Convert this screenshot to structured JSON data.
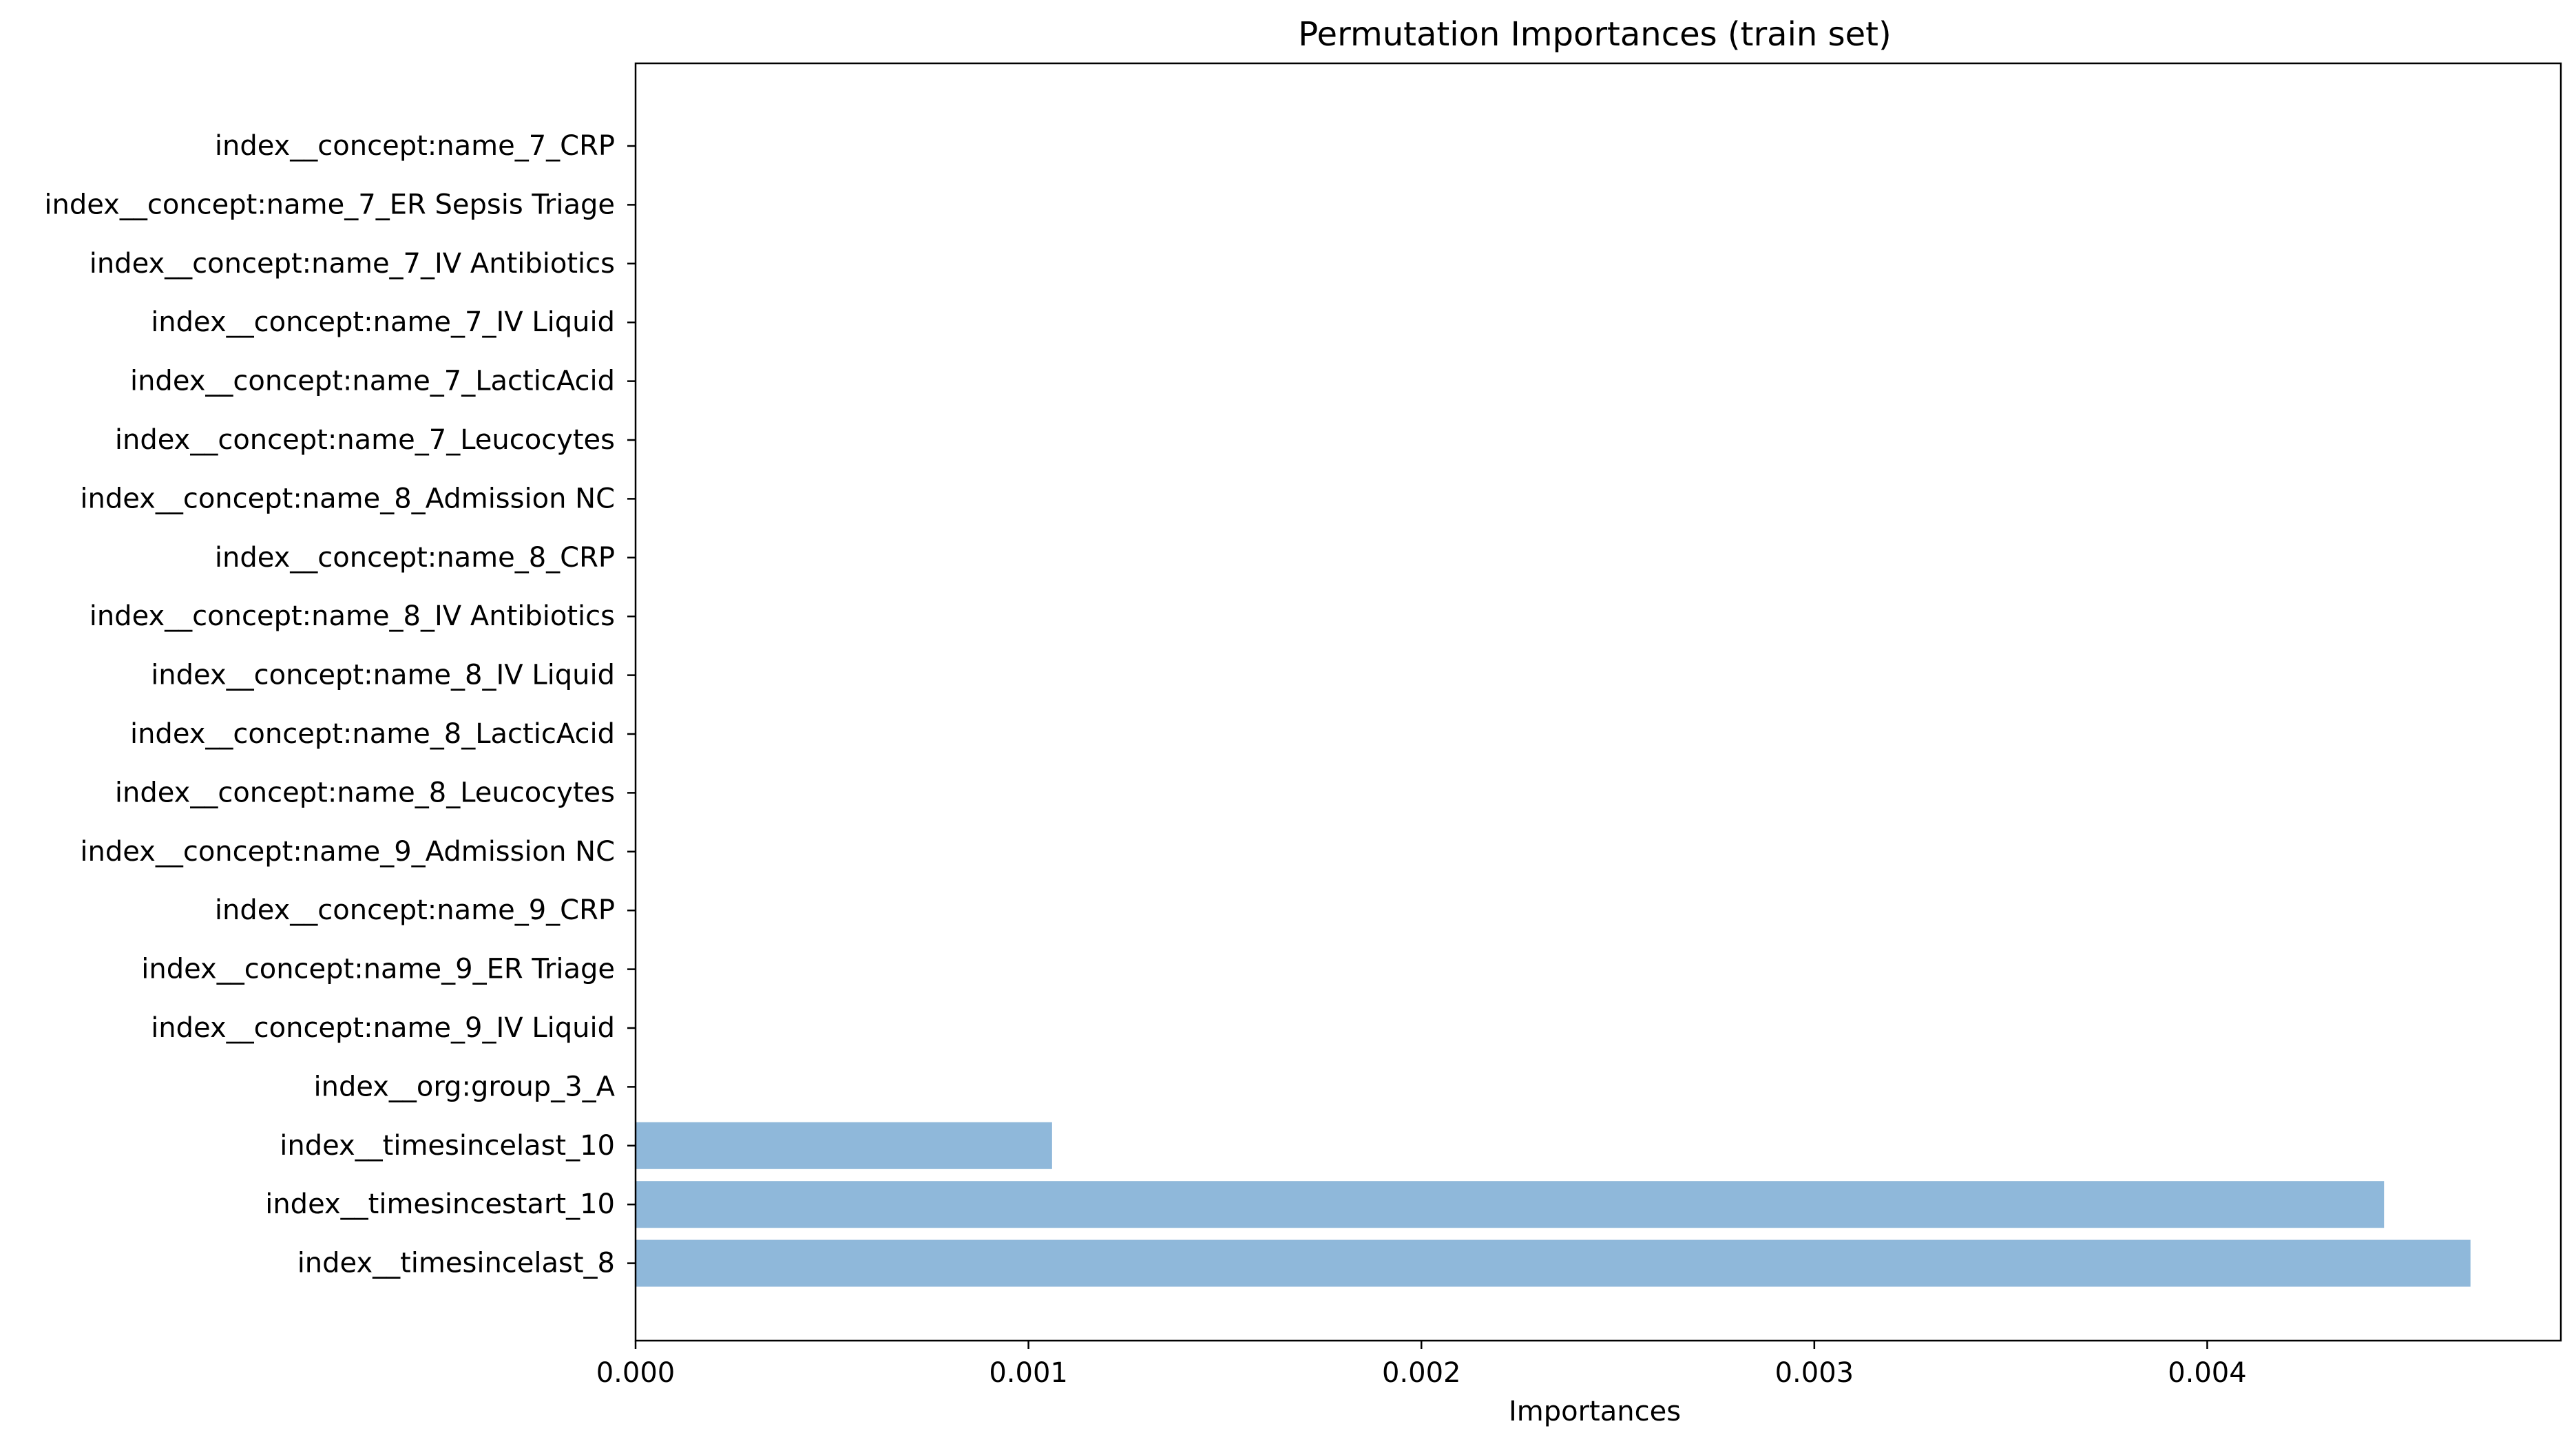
{
  "chart_data": {
    "type": "bar",
    "orientation": "horizontal",
    "title": "Permutation Importances (train set)",
    "xlabel": "Importances",
    "ylabel": "",
    "xlim": [
      0,
      0.0049
    ],
    "xticks": [
      "0.000",
      "0.001",
      "0.002",
      "0.003",
      "0.004"
    ],
    "xtick_values": [
      0,
      0.001,
      0.002,
      0.003,
      0.004
    ],
    "grid": false,
    "bar_color": "#8fb8da",
    "categories": [
      "index__concept:name_7_CRP",
      "index__concept:name_7_ER Sepsis Triage",
      "index__concept:name_7_IV Antibiotics",
      "index__concept:name_7_IV Liquid",
      "index__concept:name_7_LacticAcid",
      "index__concept:name_7_Leucocytes",
      "index__concept:name_8_Admission NC",
      "index__concept:name_8_CRP",
      "index__concept:name_8_IV Antibiotics",
      "index__concept:name_8_IV Liquid",
      "index__concept:name_8_LacticAcid",
      "index__concept:name_8_Leucocytes",
      "index__concept:name_9_Admission NC",
      "index__concept:name_9_CRP",
      "index__concept:name_9_ER Triage",
      "index__concept:name_9_IV Liquid",
      "index__org:group_3_A",
      "index__timesincelast_10",
      "index__timesincestart_10",
      "index__timesincelast_8"
    ],
    "values": [
      0,
      0,
      0,
      0,
      0,
      0,
      0,
      0,
      0,
      0,
      0,
      0,
      0,
      0,
      0,
      0,
      0,
      0.00106,
      0.00445,
      0.00467
    ]
  }
}
